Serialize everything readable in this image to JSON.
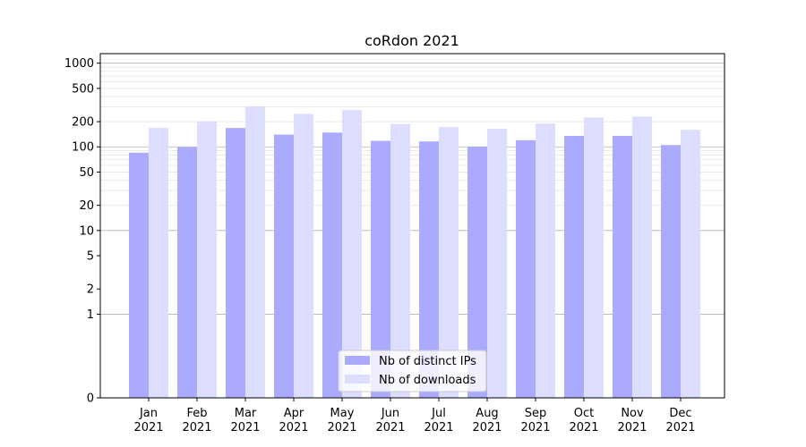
{
  "chart_data": {
    "type": "bar",
    "title": "coRdon 2021",
    "xlabel": "",
    "ylabel": "",
    "y_scale": "symlog",
    "ylim": [
      0,
      1300
    ],
    "grid": true,
    "legend_position": "lower-center",
    "categories": [
      [
        "Jan",
        "2021"
      ],
      [
        "Feb",
        "2021"
      ],
      [
        "Mar",
        "2021"
      ],
      [
        "Apr",
        "2021"
      ],
      [
        "May",
        "2021"
      ],
      [
        "Jun",
        "2021"
      ],
      [
        "Jul",
        "2021"
      ],
      [
        "Aug",
        "2021"
      ],
      [
        "Sep",
        "2021"
      ],
      [
        "Oct",
        "2021"
      ],
      [
        "Nov",
        "2021"
      ],
      [
        "Dec",
        "2021"
      ]
    ],
    "yticks": [
      0,
      1,
      2,
      5,
      10,
      20,
      50,
      100,
      200,
      500,
      1000
    ],
    "ytick_labels": [
      "0",
      "1",
      "2",
      "5",
      "10",
      "20",
      "50",
      "100",
      "200",
      "500",
      "1000"
    ],
    "series": [
      {
        "name": "Nb of distinct IPs",
        "color": "#aaaaff",
        "values": [
          85,
          99,
          168,
          140,
          148,
          118,
          116,
          100,
          120,
          135,
          135,
          105
        ]
      },
      {
        "name": "Nb of downloads",
        "color": "#ddddff",
        "values": [
          168,
          203,
          305,
          248,
          275,
          188,
          172,
          165,
          190,
          225,
          230,
          160
        ]
      }
    ]
  }
}
